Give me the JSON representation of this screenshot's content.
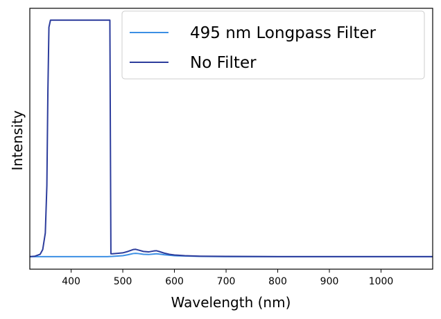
{
  "chart_data": {
    "type": "line",
    "title": "",
    "xlabel": "Wavelength (nm)",
    "ylabel": "Intensity",
    "xlim": [
      320,
      1100
    ],
    "ylim": [
      -0.053,
      1.05
    ],
    "xticks": [
      400,
      500,
      600,
      700,
      800,
      900,
      1000
    ],
    "xtick_labels": [
      "400",
      "500",
      "600",
      "700",
      "800",
      "900",
      "1000"
    ],
    "yticks_shown": false,
    "grid": false,
    "legend_position": "top-right",
    "series": [
      {
        "name": "495 nm Longpass Filter",
        "color": "#3b8fe4",
        "x": [
          320,
          470,
          480,
          500,
          510,
          520,
          525,
          530,
          540,
          550,
          560,
          565,
          570,
          580,
          600,
          650,
          700,
          1100
        ],
        "y": [
          0,
          0,
          0.001,
          0.004,
          0.008,
          0.013,
          0.014,
          0.013,
          0.01,
          0.009,
          0.011,
          0.012,
          0.011,
          0.008,
          0.004,
          0.001,
          0,
          0
        ]
      },
      {
        "name": "No Filter",
        "color": "#2c3c9c",
        "x": [
          320,
          330,
          340,
          345,
          350,
          353,
          355,
          357,
          360,
          400,
          450,
          475,
          476,
          477,
          480,
          490,
          500,
          510,
          520,
          525,
          530,
          540,
          550,
          560,
          565,
          570,
          580,
          590,
          600,
          620,
          650,
          700,
          800,
          1100
        ],
        "y": [
          0,
          0.002,
          0.01,
          0.03,
          0.1,
          0.3,
          0.7,
          0.97,
          1,
          1,
          1,
          1,
          0.5,
          0.012,
          0.012,
          0.014,
          0.016,
          0.022,
          0.03,
          0.031,
          0.028,
          0.022,
          0.02,
          0.024,
          0.025,
          0.022,
          0.015,
          0.01,
          0.007,
          0.004,
          0.002,
          0.001,
          0,
          0
        ]
      }
    ]
  }
}
